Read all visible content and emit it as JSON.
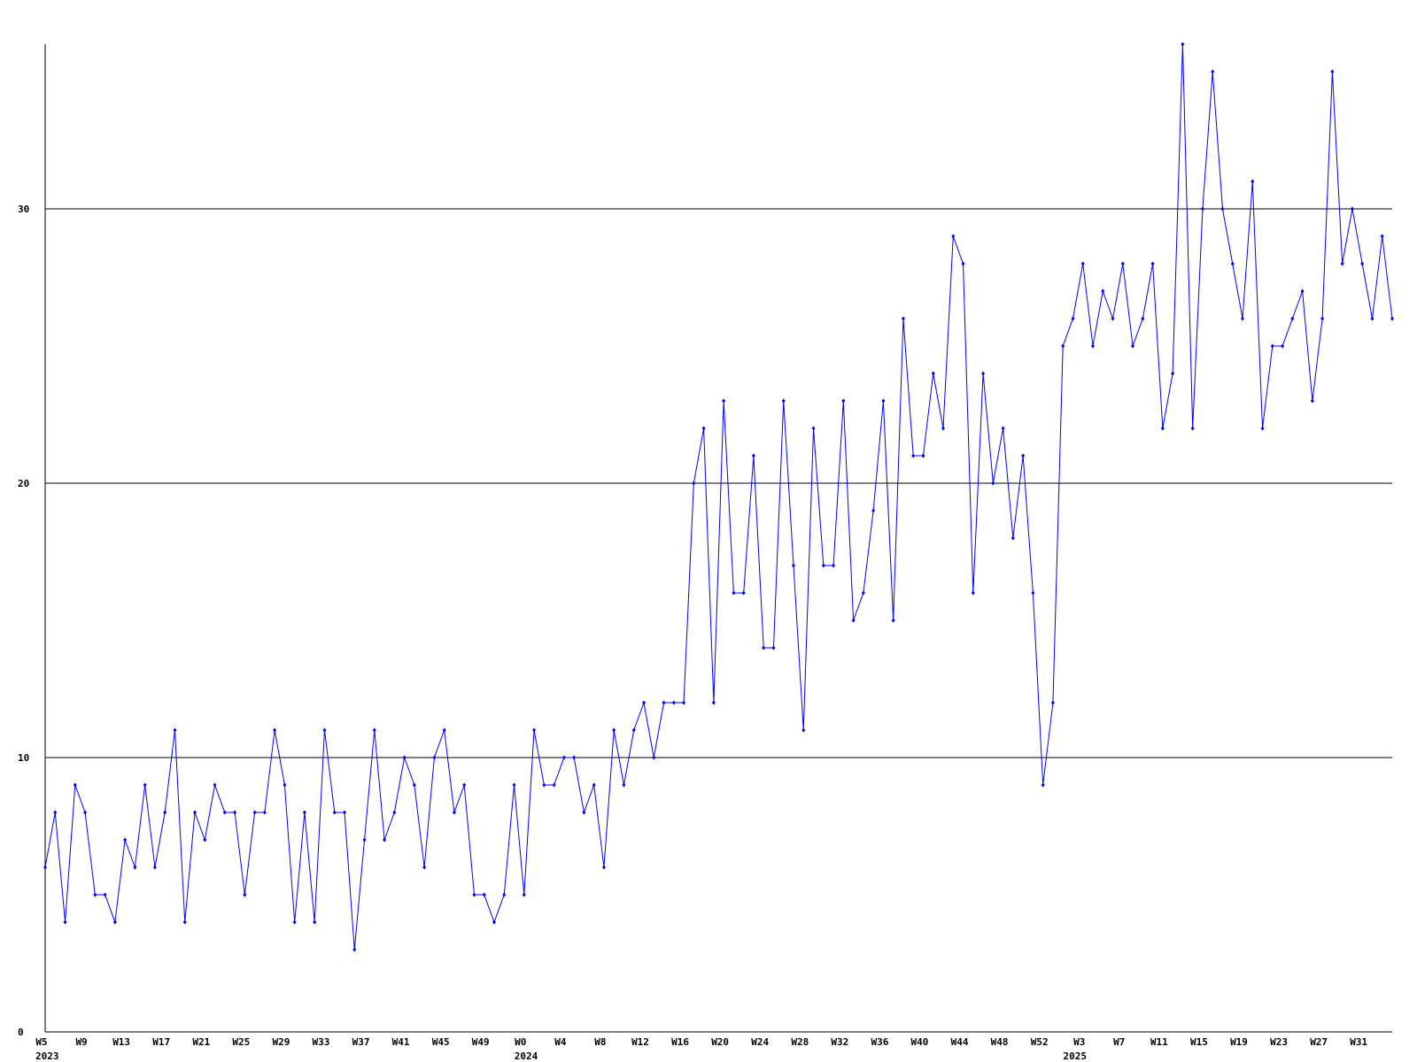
{
  "chart_data": {
    "type": "line",
    "categories": [
      "W5",
      null,
      null,
      null,
      "W9",
      null,
      null,
      null,
      "W13",
      null,
      null,
      null,
      "W17",
      null,
      null,
      null,
      "W21",
      null,
      null,
      null,
      "W25",
      null,
      null,
      null,
      "W29",
      null,
      null,
      null,
      "W33",
      null,
      null,
      null,
      "W37",
      null,
      null,
      null,
      "W41",
      null,
      null,
      null,
      "W45",
      null,
      null,
      null,
      "W49",
      null,
      null,
      null,
      "W0",
      null,
      null,
      null,
      "W4",
      null,
      null,
      null,
      "W8",
      null,
      null,
      null,
      "W12",
      null,
      null,
      null,
      "W16",
      null,
      null,
      null,
      "W20",
      null,
      null,
      null,
      "W24",
      null,
      null,
      null,
      "W28",
      null,
      null,
      null,
      "W32",
      null,
      null,
      null,
      "W36",
      null,
      null,
      null,
      "W40",
      null,
      null,
      null,
      "W44",
      null,
      null,
      null,
      "W48",
      null,
      null,
      null,
      "W52",
      null,
      null,
      null,
      "W3",
      null,
      null,
      null,
      "W7",
      null,
      null,
      null,
      "W11",
      null,
      null,
      null,
      "W15",
      null,
      null,
      null,
      "W19",
      null,
      null,
      null,
      "W23",
      null,
      null,
      null,
      "W27",
      null,
      null,
      null,
      "W31",
      null,
      null,
      null
    ],
    "years": [
      "2023",
      null,
      null,
      null,
      null,
      null,
      null,
      null,
      null,
      null,
      null,
      null,
      null,
      null,
      null,
      null,
      null,
      null,
      null,
      null,
      null,
      null,
      null,
      null,
      null,
      null,
      null,
      null,
      null,
      null,
      null,
      null,
      null,
      null,
      null,
      null,
      null,
      null,
      null,
      null,
      null,
      null,
      null,
      null,
      null,
      null,
      null,
      null,
      "2024",
      null,
      null,
      null,
      null,
      null,
      null,
      null,
      null,
      null,
      null,
      null,
      null,
      null,
      null,
      null,
      null,
      null,
      null,
      null,
      null,
      null,
      null,
      null,
      null,
      null,
      null,
      null,
      null,
      null,
      null,
      null,
      null,
      null,
      null,
      null,
      null,
      null,
      null,
      null,
      null,
      null,
      null,
      null,
      null,
      null,
      null,
      null,
      null,
      null,
      null,
      null,
      null,
      null,
      null,
      "2025",
      null,
      null,
      null,
      null,
      null,
      null,
      null,
      null,
      null,
      null,
      null,
      null,
      null,
      null,
      null,
      null,
      null,
      null,
      null,
      null,
      null,
      null,
      null,
      null,
      null,
      null,
      null,
      null,
      null,
      null,
      null,
      null,
      null,
      null
    ],
    "series": [
      {
        "color": "#0000ff",
        "values": [
          6,
          8,
          4,
          9,
          8,
          5,
          5,
          4,
          7,
          6,
          9,
          6,
          8,
          11,
          4,
          8,
          7,
          9,
          8,
          8,
          5,
          8,
          8,
          11,
          9,
          4,
          8,
          4,
          11,
          8,
          8,
          3,
          7,
          11,
          7,
          8,
          10,
          9,
          6,
          10,
          11,
          8,
          9,
          5,
          5,
          4,
          5,
          9,
          5,
          11,
          9,
          9,
          10,
          10,
          8,
          9,
          6,
          11,
          9,
          11,
          12,
          10,
          12,
          12,
          12,
          20,
          22,
          12,
          23,
          16,
          16,
          21,
          14,
          14,
          23,
          17,
          11,
          22,
          17,
          17,
          23,
          15,
          16,
          19,
          23,
          15,
          26,
          21,
          21,
          24,
          22,
          29,
          28,
          16,
          24,
          20,
          22,
          18,
          21,
          16,
          9,
          12,
          25,
          26,
          28,
          25,
          27,
          26,
          28,
          25,
          26,
          28,
          22,
          24,
          36,
          22,
          30,
          35,
          30,
          28,
          26,
          31,
          22,
          25,
          25,
          26,
          27,
          23,
          26,
          35,
          28,
          30,
          28,
          26,
          29,
          26
        ]
      }
    ],
    "ylim": [
      0,
      36
    ],
    "yticks": [
      0,
      10,
      20,
      30
    ],
    "grid": true
  }
}
